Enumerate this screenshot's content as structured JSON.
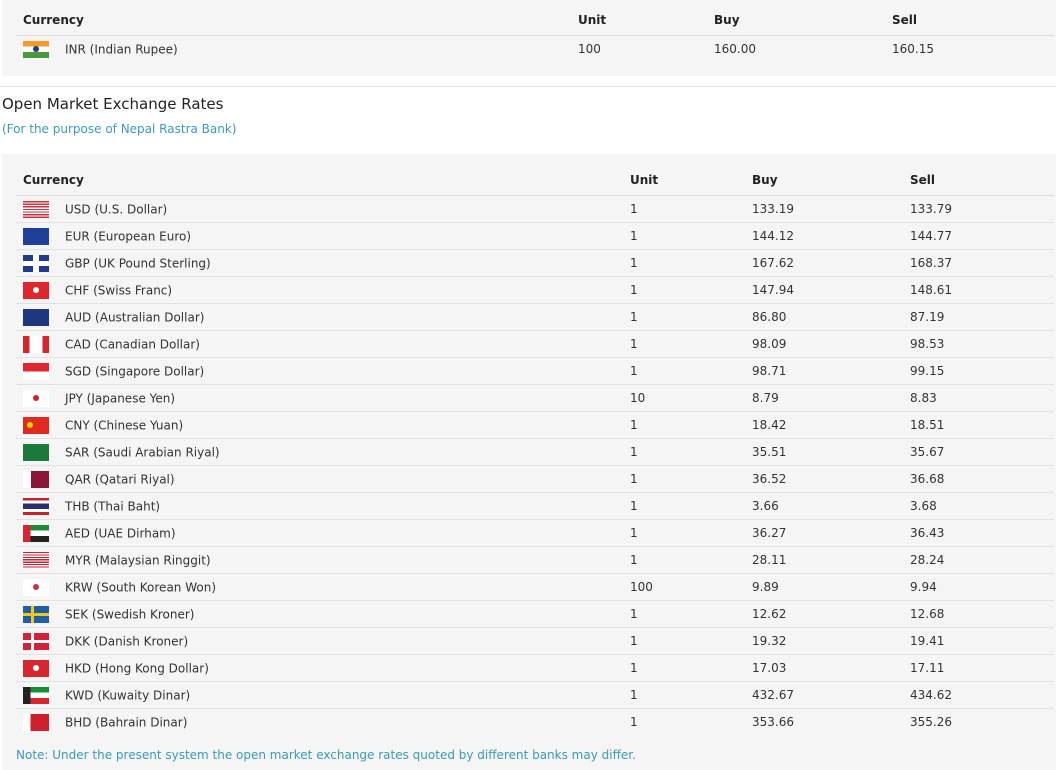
{
  "indian_table": {
    "headers": {
      "currency": "Currency",
      "unit": "Unit",
      "buy": "Buy",
      "sell": "Sell"
    },
    "rows": [
      {
        "flag": "in",
        "currency": "INR (Indian Rupee)",
        "unit": "100",
        "buy": "160.00",
        "sell": "160.15"
      }
    ]
  },
  "open_market": {
    "title": "Open Market Exchange Rates",
    "subtitle": "(For the purpose of Nepal Rastra Bank)",
    "headers": {
      "currency": "Currency",
      "unit": "Unit",
      "buy": "Buy",
      "sell": "Sell"
    },
    "rows": [
      {
        "flag": "us",
        "currency": "USD (U.S. Dollar)",
        "unit": "1",
        "buy": "133.19",
        "sell": "133.79"
      },
      {
        "flag": "eu",
        "currency": "EUR (European Euro)",
        "unit": "1",
        "buy": "144.12",
        "sell": "144.77"
      },
      {
        "flag": "gb",
        "currency": "GBP (UK Pound Sterling)",
        "unit": "1",
        "buy": "167.62",
        "sell": "168.37"
      },
      {
        "flag": "ch",
        "currency": "CHF (Swiss Franc)",
        "unit": "1",
        "buy": "147.94",
        "sell": "148.61"
      },
      {
        "flag": "au",
        "currency": "AUD (Australian Dollar)",
        "unit": "1",
        "buy": "86.80",
        "sell": "87.19"
      },
      {
        "flag": "ca",
        "currency": "CAD (Canadian Dollar)",
        "unit": "1",
        "buy": "98.09",
        "sell": "98.53"
      },
      {
        "flag": "sg",
        "currency": "SGD (Singapore Dollar)",
        "unit": "1",
        "buy": "98.71",
        "sell": "99.15"
      },
      {
        "flag": "jp",
        "currency": "JPY (Japanese Yen)",
        "unit": "10",
        "buy": "8.79",
        "sell": "8.83"
      },
      {
        "flag": "cn",
        "currency": "CNY (Chinese Yuan)",
        "unit": "1",
        "buy": "18.42",
        "sell": "18.51"
      },
      {
        "flag": "sa",
        "currency": "SAR (Saudi Arabian Riyal)",
        "unit": "1",
        "buy": "35.51",
        "sell": "35.67"
      },
      {
        "flag": "qa",
        "currency": "QAR (Qatari Riyal)",
        "unit": "1",
        "buy": "36.52",
        "sell": "36.68"
      },
      {
        "flag": "th",
        "currency": "THB (Thai Baht)",
        "unit": "1",
        "buy": "3.66",
        "sell": "3.68"
      },
      {
        "flag": "ae",
        "currency": "AED (UAE Dirham)",
        "unit": "1",
        "buy": "36.27",
        "sell": "36.43"
      },
      {
        "flag": "my",
        "currency": "MYR (Malaysian Ringgit)",
        "unit": "1",
        "buy": "28.11",
        "sell": "28.24"
      },
      {
        "flag": "kr",
        "currency": "KRW (South Korean Won)",
        "unit": "100",
        "buy": "9.89",
        "sell": "9.94"
      },
      {
        "flag": "se",
        "currency": "SEK (Swedish Kroner)",
        "unit": "1",
        "buy": "12.62",
        "sell": "12.68"
      },
      {
        "flag": "dk",
        "currency": "DKK (Danish Kroner)",
        "unit": "1",
        "buy": "19.32",
        "sell": "19.41"
      },
      {
        "flag": "hk",
        "currency": "HKD (Hong Kong Dollar)",
        "unit": "1",
        "buy": "17.03",
        "sell": "17.11"
      },
      {
        "flag": "kw",
        "currency": "KWD (Kuwaity Dinar)",
        "unit": "1",
        "buy": "432.67",
        "sell": "434.62"
      },
      {
        "flag": "bh",
        "currency": "BHD (Bahrain Dinar)",
        "unit": "1",
        "buy": "353.66",
        "sell": "355.26"
      }
    ],
    "note": "Note: Under the present system the open market exchange rates quoted by different banks may differ."
  }
}
